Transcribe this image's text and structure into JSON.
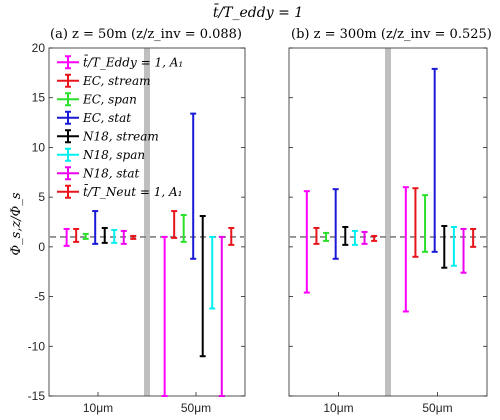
{
  "figure": {
    "suptitle": "t̄/T_eddy = 1",
    "ylabel": "Φ_s,z/Φ_s"
  },
  "legend": [
    {
      "label": "t̄/T_Eddy = 1, A₁",
      "color": "#ff00ff"
    },
    {
      "label": "EC, stream",
      "color": "#e8141b"
    },
    {
      "label": "EC, span",
      "color": "#2be02b"
    },
    {
      "label": "EC, stat",
      "color": "#1a1ad6"
    },
    {
      "label": "N18, stream",
      "color": "#000000"
    },
    {
      "label": "N18, span",
      "color": "#00f0f0"
    },
    {
      "label": "N18, stat",
      "color": "#ee00ee"
    },
    {
      "label": "t̄/T_Neut = 1, A₁",
      "color": "#e8141b"
    }
  ],
  "chart_data": [
    {
      "type": "errorbar",
      "title": "(a)   z = 50m (z/z_inv = 0.088)",
      "ylabel": "Φ_s,z/Φ_s",
      "ylim": [
        -15,
        20
      ],
      "yticks": [
        -15,
        -10,
        -5,
        0,
        5,
        10,
        15,
        20
      ],
      "categories": [
        "10μm",
        "50μm"
      ],
      "reference_line": 1,
      "series": [
        {
          "name": "t̄/T_Eddy = 1, A₁",
          "values": [
            [
              0.1,
              1.8
            ],
            [
              1.0,
              -15.0
            ]
          ]
        },
        {
          "name": "EC, stream",
          "values": [
            [
              0.5,
              1.8
            ],
            [
              0.9,
              3.6
            ]
          ]
        },
        {
          "name": "EC, span",
          "values": [
            [
              0.8,
              1.3
            ],
            [
              0.5,
              3.2
            ]
          ]
        },
        {
          "name": "EC, stat",
          "values": [
            [
              0.3,
              3.6
            ],
            [
              -1.2,
              13.4
            ]
          ]
        },
        {
          "name": "N18, stream",
          "values": [
            [
              0.4,
              1.9
            ],
            [
              -11.0,
              3.1
            ]
          ]
        },
        {
          "name": "N18, span",
          "values": [
            [
              0.4,
              1.7
            ],
            [
              -6.2,
              1.0
            ]
          ]
        },
        {
          "name": "N18, stat",
          "values": [
            [
              0.3,
              1.6
            ],
            [
              -15.0,
              1.0
            ]
          ]
        },
        {
          "name": "t̄/T_Neut = 1, A₁",
          "values": [
            [
              0.8,
              1.1
            ],
            [
              0.2,
              1.9
            ]
          ]
        }
      ]
    },
    {
      "type": "errorbar",
      "title": "(b)   z = 300m (z/z_inv = 0.525)",
      "ylim": [
        -15,
        20
      ],
      "yticks": [
        -15,
        -10,
        -5,
        0,
        5,
        10,
        15,
        20
      ],
      "categories": [
        "10μm",
        "50μm"
      ],
      "reference_line": 1,
      "series": [
        {
          "name": "t̄/T_Eddy = 1, A₁",
          "values": [
            [
              -4.6,
              5.6
            ],
            [
              -6.5,
              6.0
            ]
          ]
        },
        {
          "name": "EC, stream",
          "values": [
            [
              0.3,
              1.9
            ],
            [
              -1.0,
              5.9
            ]
          ]
        },
        {
          "name": "EC, span",
          "values": [
            [
              0.6,
              1.4
            ],
            [
              -0.5,
              5.2
            ]
          ]
        },
        {
          "name": "EC, stat",
          "values": [
            [
              -1.2,
              5.8
            ],
            [
              -0.5,
              17.9
            ]
          ]
        },
        {
          "name": "N18, stream",
          "values": [
            [
              0.2,
              2.0
            ],
            [
              -2.1,
              2.1
            ]
          ]
        },
        {
          "name": "N18, span",
          "values": [
            [
              0.2,
              1.6
            ],
            [
              -1.9,
              2.0
            ]
          ]
        },
        {
          "name": "N18, stat",
          "values": [
            [
              0.3,
              1.5
            ],
            [
              -2.6,
              1.8
            ]
          ]
        },
        {
          "name": "t̄/T_Neut = 1, A₁",
          "values": [
            [
              0.6,
              1.1
            ],
            [
              0.0,
              1.8
            ]
          ]
        }
      ]
    }
  ]
}
